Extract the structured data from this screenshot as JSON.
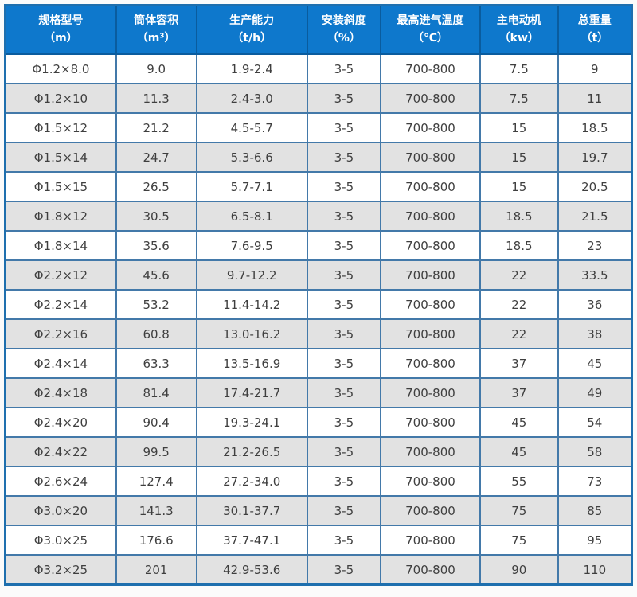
{
  "chart_data": {
    "type": "table",
    "title": "",
    "columns": [
      {
        "label": "规格型号",
        "unit": "（m）"
      },
      {
        "label": "筒体容积",
        "unit": "（m³）"
      },
      {
        "label": "生产能力",
        "unit": "（t/h）"
      },
      {
        "label": "安装斜度",
        "unit": "（%）"
      },
      {
        "label": "最高进气温度",
        "unit": "（℃）"
      },
      {
        "label": "主电动机",
        "unit": "（kw）"
      },
      {
        "label": "总重量",
        "unit": "（t）"
      }
    ],
    "rows": [
      [
        "Φ1.2×8.0",
        "9.0",
        "1.9-2.4",
        "3-5",
        "700-800",
        "7.5",
        "9"
      ],
      [
        "Φ1.2×10",
        "11.3",
        "2.4-3.0",
        "3-5",
        "700-800",
        "7.5",
        "11"
      ],
      [
        "Φ1.5×12",
        "21.2",
        "4.5-5.7",
        "3-5",
        "700-800",
        "15",
        "18.5"
      ],
      [
        "Φ1.5×14",
        "24.7",
        "5.3-6.6",
        "3-5",
        "700-800",
        "15",
        "19.7"
      ],
      [
        "Φ1.5×15",
        "26.5",
        "5.7-7.1",
        "3-5",
        "700-800",
        "15",
        "20.5"
      ],
      [
        "Φ1.8×12",
        "30.5",
        "6.5-8.1",
        "3-5",
        "700-800",
        "18.5",
        "21.5"
      ],
      [
        "Φ1.8×14",
        "35.6",
        "7.6-9.5",
        "3-5",
        "700-800",
        "18.5",
        "23"
      ],
      [
        "Φ2.2×12",
        "45.6",
        "9.7-12.2",
        "3-5",
        "700-800",
        "22",
        "33.5"
      ],
      [
        "Φ2.2×14",
        "53.2",
        "11.4-14.2",
        "3-5",
        "700-800",
        "22",
        "36"
      ],
      [
        "Φ2.2×16",
        "60.8",
        "13.0-16.2",
        "3-5",
        "700-800",
        "22",
        "38"
      ],
      [
        "Φ2.4×14",
        "63.3",
        "13.5-16.9",
        "3-5",
        "700-800",
        "37",
        "45"
      ],
      [
        "Φ2.4×18",
        "81.4",
        "17.4-21.7",
        "3-5",
        "700-800",
        "37",
        "49"
      ],
      [
        "Φ2.4×20",
        "90.4",
        "19.3-24.1",
        "3-5",
        "700-800",
        "45",
        "54"
      ],
      [
        "Φ2.4×22",
        "99.5",
        "21.2-26.5",
        "3-5",
        "700-800",
        "45",
        "58"
      ],
      [
        "Φ2.6×24",
        "127.4",
        "27.2-34.0",
        "3-5",
        "700-800",
        "55",
        "73"
      ],
      [
        "Φ3.0×20",
        "141.3",
        "30.1-37.7",
        "3-5",
        "700-800",
        "75",
        "85"
      ],
      [
        "Φ3.0×25",
        "176.6",
        "37.7-47.1",
        "3-5",
        "700-800",
        "75",
        "95"
      ],
      [
        "Φ3.2×25",
        "201",
        "42.9-53.6",
        "3-5",
        "700-800",
        "90",
        "110"
      ]
    ],
    "layout": {
      "striped": true,
      "stripe_pattern": "odd-rows-white-even-rows-gray",
      "grid": true,
      "header_position": "top"
    }
  },
  "colors": {
    "header_bg": "#0e78cc",
    "header_text": "#ffffff",
    "header_border": "#0a5c9e",
    "cell_border": "#4379a9",
    "outer_border": "#1e6fae",
    "row_white_bg": "#ffffff",
    "row_gray_bg": "#e2e2e2",
    "cell_text": "#3f3f3f",
    "page_bg": "#fbfbfb"
  }
}
